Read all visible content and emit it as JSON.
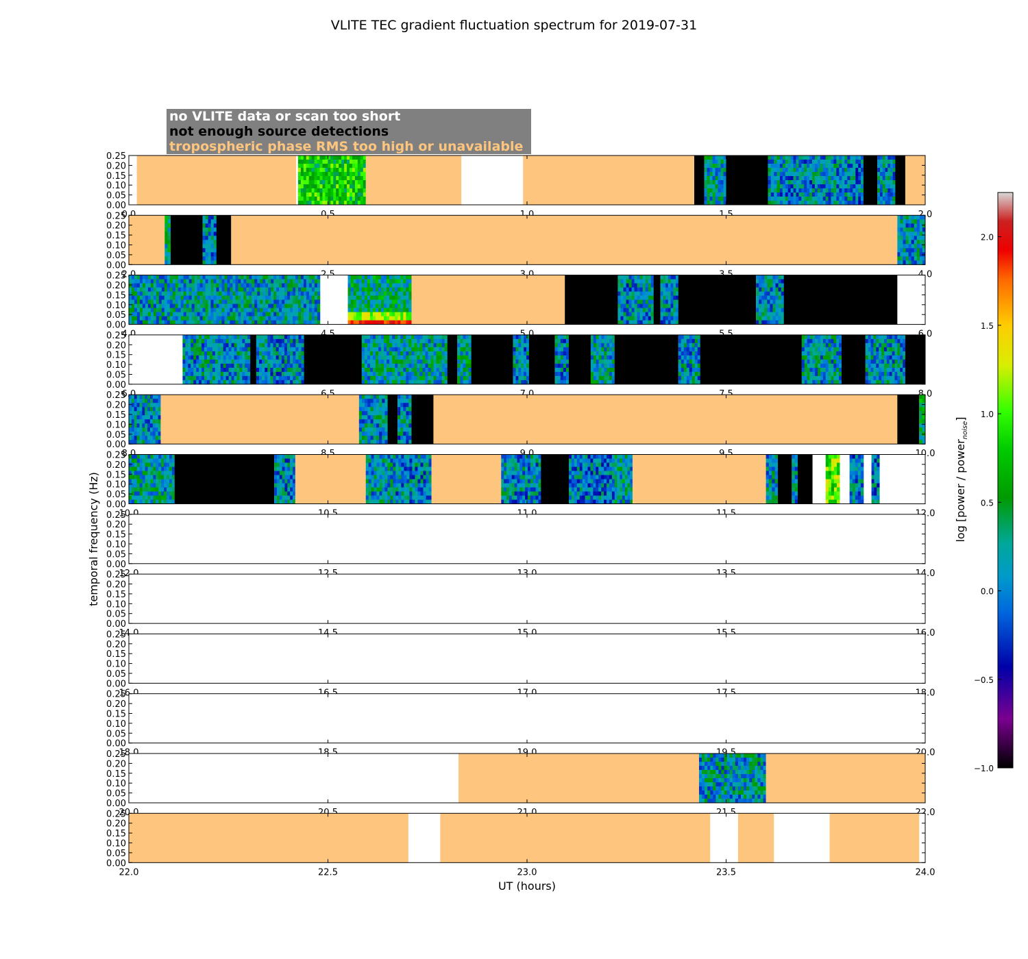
{
  "chart_data": {
    "type": "heatmap",
    "title": "VLITE TEC gradient fluctuation spectrum for 2019-07-31",
    "xlabel": "UT (hours)",
    "ylabel": "temporal frequency (Hz)",
    "colorbar_label": "log [power / power",
    "colorbar_label_sub": "noise",
    "colorbar_label_end": "]",
    "colorbar_range": [
      -1.0,
      2.25
    ],
    "colorbar_ticks": [
      2.0,
      1.5,
      1.0,
      0.5,
      0.0,
      -0.5,
      -1.0
    ],
    "colorbar_tick_labels": [
      "2.0",
      "1.5",
      "1.0",
      "0.5",
      "0.0",
      "−0.5",
      "−1.0"
    ],
    "ylim": [
      0,
      0.25
    ],
    "yticks": [
      0.0,
      0.05,
      0.1,
      0.15,
      0.2,
      0.25
    ],
    "ytick_labels": [
      "0.00",
      "0.05",
      "0.10",
      "0.15",
      "0.20",
      "0.25"
    ],
    "legend": [
      {
        "label": "no VLITE data or scan too short",
        "category": "nodata",
        "color": "#ffffff"
      },
      {
        "label": "not enough source detections",
        "category": "nodet",
        "color": "#000000"
      },
      {
        "label": "tropospheric phase RMS too high or unavailable",
        "category": "tropo",
        "color": "#fdc57e"
      }
    ],
    "colors": {
      "tropo": "#fdc57e",
      "nodet": "#000000",
      "nodata": "#ffffff",
      "legend_bg": "#808080"
    },
    "panels": [
      {
        "xrange": [
          0,
          2
        ],
        "xtick_labels": [
          "0.0",
          "0.5",
          "1.0",
          "1.5",
          "2.0"
        ],
        "segments": [
          {
            "start": 0.02,
            "end": 0.42,
            "kind": "tropo"
          },
          {
            "start": 0.425,
            "end": 0.595,
            "kind": "data",
            "level": 0.75
          },
          {
            "start": 0.595,
            "end": 0.835,
            "kind": "tropo"
          },
          {
            "start": 0.99,
            "end": 1.42,
            "kind": "tropo"
          },
          {
            "start": 1.42,
            "end": 1.445,
            "kind": "nodet"
          },
          {
            "start": 1.445,
            "end": 1.5,
            "kind": "data",
            "level": 0.2
          },
          {
            "start": 1.5,
            "end": 1.605,
            "kind": "nodet"
          },
          {
            "start": 1.605,
            "end": 1.635,
            "kind": "data",
            "level": 0.1
          },
          {
            "start": 1.635,
            "end": 1.77,
            "kind": "data",
            "level": 0.05
          },
          {
            "start": 1.77,
            "end": 1.825,
            "kind": "data",
            "level": 0.1
          },
          {
            "start": 1.825,
            "end": 1.845,
            "kind": "data",
            "level": 0.0
          },
          {
            "start": 1.845,
            "end": 1.88,
            "kind": "nodet"
          },
          {
            "start": 1.88,
            "end": 1.925,
            "kind": "data",
            "level": 0.1
          },
          {
            "start": 1.925,
            "end": 1.95,
            "kind": "nodet"
          },
          {
            "start": 1.95,
            "end": 2.0,
            "kind": "tropo"
          }
        ]
      },
      {
        "xrange": [
          2,
          4
        ],
        "xtick_labels": [
          "2.0",
          "2.5",
          "3.0",
          "3.5",
          "4.0"
        ],
        "segments": [
          {
            "start": 2.0,
            "end": 2.09,
            "kind": "tropo"
          },
          {
            "start": 2.09,
            "end": 2.105,
            "kind": "data",
            "level": 0.3
          },
          {
            "start": 2.105,
            "end": 2.185,
            "kind": "nodet"
          },
          {
            "start": 2.185,
            "end": 2.22,
            "kind": "data",
            "level": 0.05
          },
          {
            "start": 2.22,
            "end": 2.257,
            "kind": "nodet"
          },
          {
            "start": 2.257,
            "end": 3.93,
            "kind": "tropo"
          },
          {
            "start": 3.93,
            "end": 4.0,
            "kind": "data",
            "level": 0.1
          }
        ]
      },
      {
        "xrange": [
          4,
          6
        ],
        "xtick_labels": [
          "4.0",
          "4.5",
          "5.0",
          "5.5",
          "6.0"
        ],
        "segments": [
          {
            "start": 4.0,
            "end": 4.48,
            "kind": "data",
            "level": 0.15
          },
          {
            "start": 4.55,
            "end": 4.71,
            "kind": "data",
            "level": 0.35,
            "hot_bottom": true
          },
          {
            "start": 4.71,
            "end": 5.095,
            "kind": "tropo"
          },
          {
            "start": 5.095,
            "end": 5.228,
            "kind": "nodet"
          },
          {
            "start": 5.228,
            "end": 5.318,
            "kind": "data",
            "level": 0.05
          },
          {
            "start": 5.318,
            "end": 5.335,
            "kind": "nodet"
          },
          {
            "start": 5.335,
            "end": 5.38,
            "kind": "data",
            "level": 0.05
          },
          {
            "start": 5.38,
            "end": 5.575,
            "kind": "nodet"
          },
          {
            "start": 5.575,
            "end": 5.645,
            "kind": "data",
            "level": 0.05
          },
          {
            "start": 5.645,
            "end": 5.93,
            "kind": "nodet"
          }
        ]
      },
      {
        "xrange": [
          6,
          8
        ],
        "xtick_labels": [
          "6.0",
          "6.5",
          "7.0",
          "7.5",
          "8.0"
        ],
        "segments": [
          {
            "start": 6.135,
            "end": 6.305,
            "kind": "data",
            "level": 0.1
          },
          {
            "start": 6.305,
            "end": 6.32,
            "kind": "nodet"
          },
          {
            "start": 6.32,
            "end": 6.44,
            "kind": "data",
            "level": 0.05
          },
          {
            "start": 6.44,
            "end": 6.585,
            "kind": "nodet"
          },
          {
            "start": 6.585,
            "end": 6.8,
            "kind": "data",
            "level": 0.2
          },
          {
            "start": 6.8,
            "end": 6.825,
            "kind": "nodet"
          },
          {
            "start": 6.825,
            "end": 6.86,
            "kind": "data",
            "level": 0.25
          },
          {
            "start": 6.86,
            "end": 6.965,
            "kind": "nodet"
          },
          {
            "start": 6.965,
            "end": 7.005,
            "kind": "data",
            "level": 0.05
          },
          {
            "start": 7.005,
            "end": 7.07,
            "kind": "nodet"
          },
          {
            "start": 7.07,
            "end": 7.105,
            "kind": "data",
            "level": 0.05
          },
          {
            "start": 7.105,
            "end": 7.16,
            "kind": "nodet"
          },
          {
            "start": 7.16,
            "end": 7.22,
            "kind": "data",
            "level": 0.2
          },
          {
            "start": 7.22,
            "end": 7.38,
            "kind": "nodet"
          },
          {
            "start": 7.38,
            "end": 7.435,
            "kind": "data",
            "level": 0.1
          },
          {
            "start": 7.435,
            "end": 7.69,
            "kind": "nodet"
          },
          {
            "start": 7.69,
            "end": 7.79,
            "kind": "data",
            "level": 0.15
          },
          {
            "start": 7.79,
            "end": 7.85,
            "kind": "nodet"
          },
          {
            "start": 7.85,
            "end": 7.95,
            "kind": "data",
            "level": 0.1
          },
          {
            "start": 7.95,
            "end": 8.0,
            "kind": "nodet"
          }
        ]
      },
      {
        "xrange": [
          8,
          10
        ],
        "xtick_labels": [
          "8.0",
          "8.5",
          "9.0",
          "9.5",
          "10.0"
        ],
        "segments": [
          {
            "start": 8.0,
            "end": 8.08,
            "kind": "data",
            "level": 0.1
          },
          {
            "start": 8.08,
            "end": 8.578,
            "kind": "tropo"
          },
          {
            "start": 8.578,
            "end": 8.65,
            "kind": "data",
            "level": 0.1
          },
          {
            "start": 8.65,
            "end": 8.675,
            "kind": "nodet"
          },
          {
            "start": 8.675,
            "end": 8.71,
            "kind": "data",
            "level": 0.05
          },
          {
            "start": 8.71,
            "end": 8.765,
            "kind": "nodet"
          },
          {
            "start": 8.765,
            "end": 9.93,
            "kind": "tropo"
          },
          {
            "start": 9.93,
            "end": 9.985,
            "kind": "nodet"
          },
          {
            "start": 9.985,
            "end": 10.0,
            "kind": "data",
            "level": 0.45
          }
        ]
      },
      {
        "xrange": [
          10,
          12
        ],
        "xtick_labels": [
          "10.0",
          "10.5",
          "11.0",
          "11.5",
          "12.0"
        ],
        "segments": [
          {
            "start": 10.0,
            "end": 10.115,
            "kind": "data",
            "level": 0.2
          },
          {
            "start": 10.115,
            "end": 10.365,
            "kind": "nodet"
          },
          {
            "start": 10.365,
            "end": 10.418,
            "kind": "data",
            "level": 0.05
          },
          {
            "start": 10.418,
            "end": 10.595,
            "kind": "tropo"
          },
          {
            "start": 10.595,
            "end": 10.67,
            "kind": "data",
            "level": 0.15
          },
          {
            "start": 10.67,
            "end": 10.76,
            "kind": "data",
            "level": 0.05
          },
          {
            "start": 10.76,
            "end": 10.935,
            "kind": "tropo"
          },
          {
            "start": 10.935,
            "end": 10.955,
            "kind": "data",
            "level": 0.1
          },
          {
            "start": 10.955,
            "end": 11.035,
            "kind": "data",
            "level": 0.05
          },
          {
            "start": 11.035,
            "end": 11.105,
            "kind": "nodet"
          },
          {
            "start": 11.105,
            "end": 11.22,
            "kind": "data",
            "level": 0.0
          },
          {
            "start": 11.22,
            "end": 11.265,
            "kind": "data",
            "level": 0.2
          },
          {
            "start": 11.265,
            "end": 11.6,
            "kind": "tropo"
          },
          {
            "start": 11.6,
            "end": 11.63,
            "kind": "data",
            "level": 0.1
          },
          {
            "start": 11.63,
            "end": 11.665,
            "kind": "nodet"
          },
          {
            "start": 11.665,
            "end": 11.68,
            "kind": "data",
            "level": 0.05
          },
          {
            "start": 11.68,
            "end": 11.717,
            "kind": "nodet"
          },
          {
            "start": 11.75,
            "end": 11.785,
            "kind": "data",
            "level": 1.0
          },
          {
            "start": 11.81,
            "end": 11.845,
            "kind": "data",
            "level": 0.0
          },
          {
            "start": 11.865,
            "end": 11.885,
            "kind": "data",
            "level": 0.0
          }
        ]
      },
      {
        "xrange": [
          12,
          14
        ],
        "xtick_labels": [
          "12.0",
          "12.5",
          "13.0",
          "13.5",
          "14.0"
        ],
        "segments": []
      },
      {
        "xrange": [
          14,
          16
        ],
        "xtick_labels": [
          "14.0",
          "14.5",
          "15.0",
          "15.5",
          "16.0"
        ],
        "segments": []
      },
      {
        "xrange": [
          16,
          18
        ],
        "xtick_labels": [
          "16.0",
          "16.5",
          "17.0",
          "17.5",
          "18.0"
        ],
        "segments": []
      },
      {
        "xrange": [
          18,
          20
        ],
        "xtick_labels": [
          "18.0",
          "18.5",
          "19.0",
          "19.5",
          "20.0"
        ],
        "segments": []
      },
      {
        "xrange": [
          20,
          22
        ],
        "xtick_labels": [
          "20.0",
          "20.5",
          "21.0",
          "21.5",
          "22.0"
        ],
        "segments": [
          {
            "start": 20.828,
            "end": 21.432,
            "kind": "tropo"
          },
          {
            "start": 21.432,
            "end": 21.6,
            "kind": "data",
            "level": 0.15
          },
          {
            "start": 21.6,
            "end": 22.0,
            "kind": "tropo"
          }
        ]
      },
      {
        "xrange": [
          22,
          24
        ],
        "xtick_labels": [
          "22.0",
          "22.5",
          "23.0",
          "23.5",
          "24.0"
        ],
        "segments": [
          {
            "start": 22.0,
            "end": 22.702,
            "kind": "tropo"
          },
          {
            "start": 22.782,
            "end": 23.46,
            "kind": "tropo"
          },
          {
            "start": 23.53,
            "end": 23.62,
            "kind": "tropo"
          },
          {
            "start": 23.76,
            "end": 23.985,
            "kind": "tropo"
          }
        ]
      }
    ]
  }
}
